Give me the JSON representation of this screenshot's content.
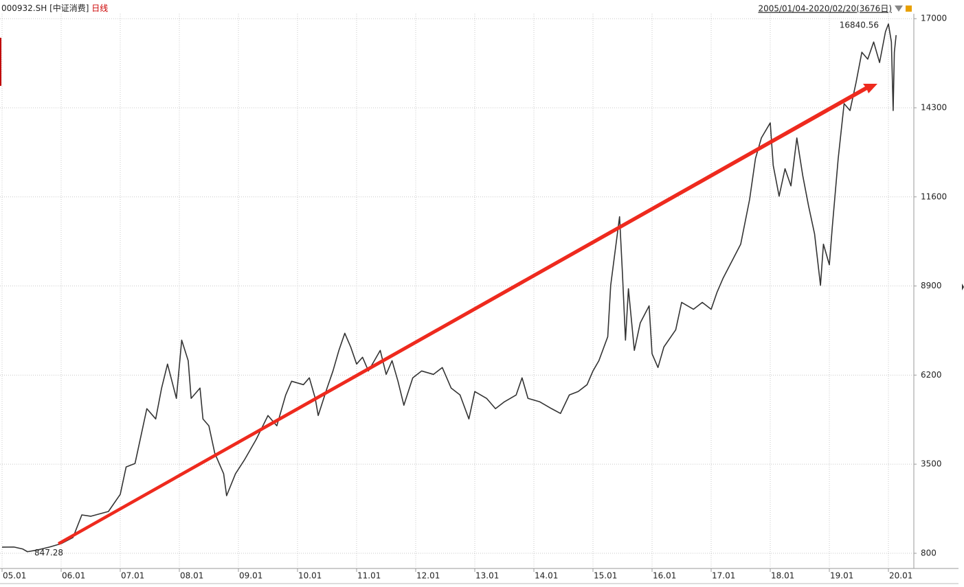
{
  "chart_data": {
    "type": "line",
    "code": "000932.SH",
    "name": "[中证消费]",
    "period": "日线",
    "range": "2005/01/04-2020/02/20(3676日)",
    "xlim": [
      2005,
      2020.43
    ],
    "xticks": [
      {
        "value": 2005,
        "label": "05.01"
      },
      {
        "value": 2006,
        "label": "06.01"
      },
      {
        "value": 2007,
        "label": "07.01"
      },
      {
        "value": 2008,
        "label": "08.01"
      },
      {
        "value": 2009,
        "label": "09.01"
      },
      {
        "value": 2010,
        "label": "10.01"
      },
      {
        "value": 2011,
        "label": "11.01"
      },
      {
        "value": 2012,
        "label": "12.01"
      },
      {
        "value": 2013,
        "label": "13.01"
      },
      {
        "value": 2014,
        "label": "14.01"
      },
      {
        "value": 2015,
        "label": "15.01"
      },
      {
        "value": 2016,
        "label": "16.01"
      },
      {
        "value": 2017,
        "label": "17.01"
      },
      {
        "value": 2018,
        "label": "18.01"
      },
      {
        "value": 2019,
        "label": "19.01"
      },
      {
        "value": 2020,
        "label": "20.01"
      }
    ],
    "ylim": [
      340,
      17150
    ],
    "yticks": [
      800,
      3500,
      6200,
      8900,
      11600,
      14300,
      17000
    ],
    "grid": true,
    "x": [
      2005.0,
      2005.2,
      2005.35,
      2005.43,
      2005.6,
      2005.8,
      2006.0,
      2006.2,
      2006.35,
      2006.5,
      2006.8,
      2007.0,
      2007.1,
      2007.25,
      2007.35,
      2007.45,
      2007.6,
      2007.7,
      2007.8,
      2007.95,
      2008.04,
      2008.15,
      2008.2,
      2008.35,
      2008.4,
      2008.5,
      2008.6,
      2008.75,
      2008.8,
      2008.95,
      2009.1,
      2009.3,
      2009.5,
      2009.65,
      2009.8,
      2009.9,
      2010.1,
      2010.2,
      2010.3,
      2010.35,
      2010.5,
      2010.6,
      2010.7,
      2010.8,
      2010.9,
      2011.0,
      2011.1,
      2011.2,
      2011.3,
      2011.4,
      2011.5,
      2011.6,
      2011.7,
      2011.8,
      2011.95,
      2012.1,
      2012.3,
      2012.45,
      2012.6,
      2012.75,
      2012.9,
      2013.0,
      2013.2,
      2013.35,
      2013.5,
      2013.7,
      2013.8,
      2013.9,
      2014.1,
      2014.3,
      2014.45,
      2014.6,
      2014.75,
      2014.9,
      2015.0,
      2015.1,
      2015.25,
      2015.3,
      2015.45,
      2015.5,
      2015.55,
      2015.6,
      2015.7,
      2015.8,
      2015.95,
      2016.0,
      2016.1,
      2016.2,
      2016.4,
      2016.5,
      2016.7,
      2016.85,
      2017.0,
      2017.1,
      2017.2,
      2017.35,
      2017.5,
      2017.65,
      2017.75,
      2017.85,
      2018.0,
      2018.05,
      2018.15,
      2018.25,
      2018.35,
      2018.45,
      2018.55,
      2018.65,
      2018.75,
      2018.85,
      2018.9,
      2019.0,
      2019.05,
      2019.15,
      2019.25,
      2019.35,
      2019.45,
      2019.55,
      2019.65,
      2019.75,
      2019.85,
      2019.95,
      2020.0,
      2020.05,
      2020.08,
      2020.1,
      2020.13
    ],
    "series": [
      {
        "color": "#333333",
        "values": [
          987,
          990,
          930,
          847.28,
          900,
          987,
          1091,
          1278,
          1963,
          1922,
          2067,
          2586,
          3417,
          3521,
          4352,
          5182,
          4871,
          5806,
          6533,
          5494,
          7259,
          6636,
          5494,
          5806,
          4871,
          4663,
          3832,
          3209,
          2545,
          3209,
          3625,
          4248,
          4975,
          4663,
          5598,
          6013,
          5909,
          6117,
          5494,
          4975,
          5806,
          6325,
          6948,
          7467,
          7052,
          6533,
          6740,
          6325,
          6636,
          6948,
          6221,
          6636,
          6013,
          5286,
          6117,
          6325,
          6221,
          6429,
          5806,
          5598,
          4871,
          5702,
          5494,
          5182,
          5390,
          5598,
          6117,
          5494,
          5390,
          5182,
          5037,
          5598,
          5702,
          5909,
          6325,
          6636,
          7363,
          8921,
          10998,
          9233,
          7259,
          8817,
          6948,
          7779,
          8298,
          6844,
          6429,
          7052,
          7571,
          8402,
          8194,
          8402,
          8194,
          8713,
          9129,
          9648,
          10167,
          11517,
          12764,
          13387,
          13844,
          12556,
          11621,
          12452,
          11933,
          13387,
          12244,
          11310,
          10479,
          8921,
          10167,
          9544,
          10687,
          12764,
          14425,
          14217,
          15048,
          15983,
          15775,
          16294,
          15671,
          16606,
          16840.56,
          16294,
          14217,
          15983,
          16502
        ]
      }
    ],
    "annotations": [
      {
        "label": "16840.56",
        "x": 2020.0,
        "value": 16840.56,
        "color": "#cc0000",
        "side": "left"
      },
      {
        "label": "847.28",
        "x": 2005.43,
        "value": 847.28,
        "color": "#119911",
        "side": "right"
      }
    ]
  }
}
